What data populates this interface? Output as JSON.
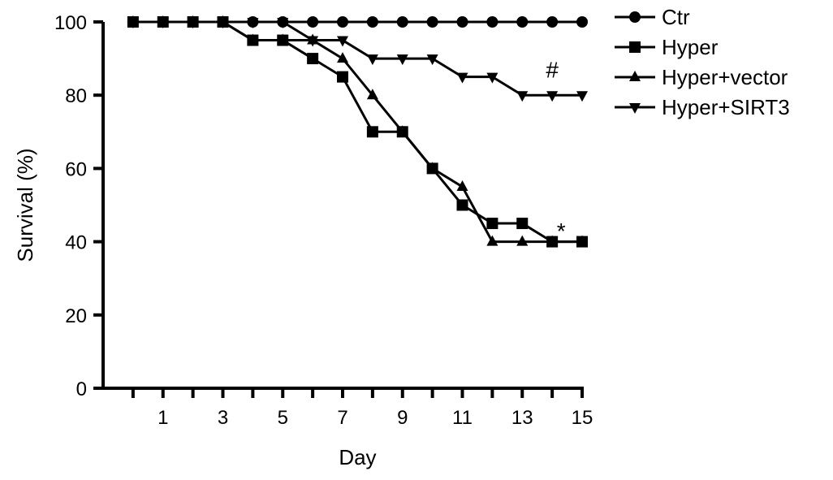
{
  "chart_data": {
    "type": "line",
    "title": "",
    "xlabel": "Day",
    "ylabel": "Survival (%)",
    "xlim": [
      -1,
      15
    ],
    "ylim": [
      0,
      100
    ],
    "x_ticks": [
      1,
      3,
      5,
      7,
      9,
      11,
      13,
      15
    ],
    "y_ticks": [
      0,
      20,
      40,
      60,
      80,
      100
    ],
    "x": [
      0,
      1,
      2,
      3,
      4,
      5,
      6,
      7,
      8,
      9,
      10,
      11,
      12,
      13,
      14,
      15
    ],
    "legend_position": "top-right",
    "grid": false,
    "series": [
      {
        "name": "Ctr",
        "marker": "circle",
        "values": [
          100,
          100,
          100,
          100,
          100,
          100,
          100,
          100,
          100,
          100,
          100,
          100,
          100,
          100,
          100,
          100
        ]
      },
      {
        "name": "Hyper",
        "marker": "square",
        "values": [
          100,
          100,
          100,
          100,
          95,
          95,
          90,
          85,
          70,
          70,
          60,
          50,
          45,
          45,
          40,
          40
        ]
      },
      {
        "name": "Hyper+vector",
        "marker": "triangle-up",
        "values": [
          100,
          100,
          100,
          100,
          95,
          95,
          95,
          90,
          80,
          70,
          60,
          55,
          40,
          40,
          40,
          40
        ]
      },
      {
        "name": "Hyper+SIRT3",
        "marker": "triangle-down",
        "values": [
          100,
          100,
          100,
          100,
          100,
          100,
          95,
          95,
          90,
          90,
          90,
          85,
          85,
          80,
          80,
          80
        ]
      }
    ],
    "annotations": [
      {
        "text": "#",
        "x": 14,
        "y": 87
      },
      {
        "text": "*",
        "x": 14.3,
        "y": 43
      }
    ]
  }
}
